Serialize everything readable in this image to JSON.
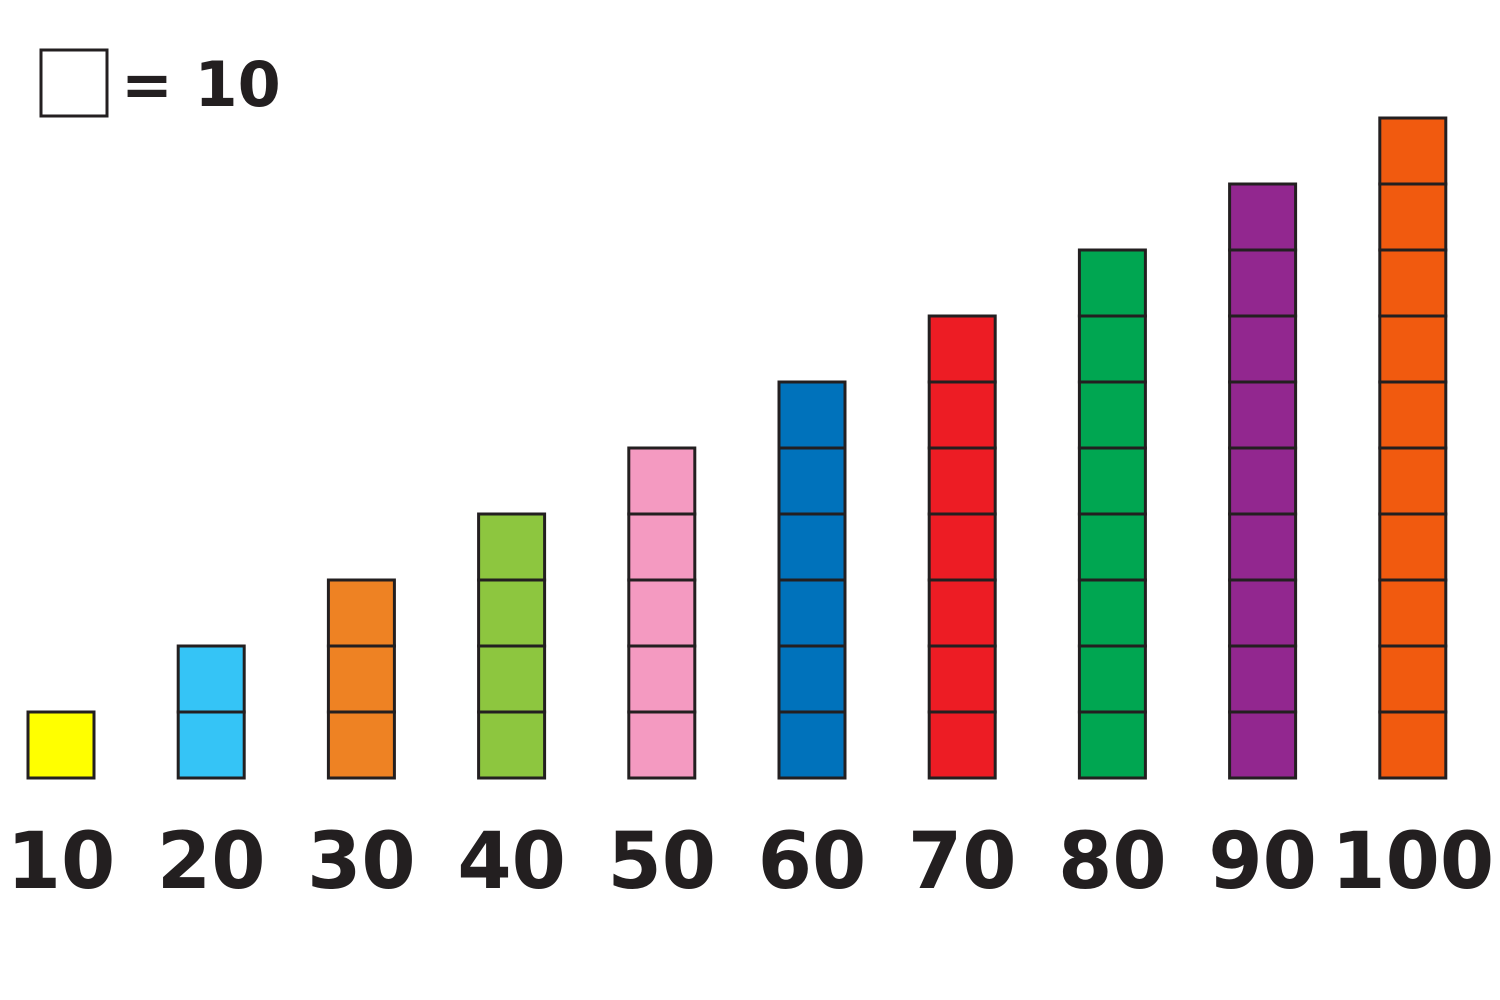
{
  "chart_data": {
    "type": "bar",
    "title": "",
    "xlabel": "",
    "ylabel": "",
    "legend": {
      "symbol": "square-block",
      "label": "= 10",
      "unit_value": 10,
      "placement": "top-left"
    },
    "categories": [
      "10",
      "20",
      "30",
      "40",
      "50",
      "60",
      "70",
      "80",
      "90",
      "100"
    ],
    "values": [
      10,
      20,
      30,
      40,
      50,
      60,
      70,
      80,
      90,
      100
    ],
    "colors": [
      "#ffff00",
      "#35c4f6",
      "#ee8223",
      "#8dc63f",
      "#f49ac1",
      "#0072bb",
      "#ed1c24",
      "#00a651",
      "#92278f",
      "#f15a0f"
    ],
    "ylim": [
      0,
      100
    ],
    "grid": false
  }
}
